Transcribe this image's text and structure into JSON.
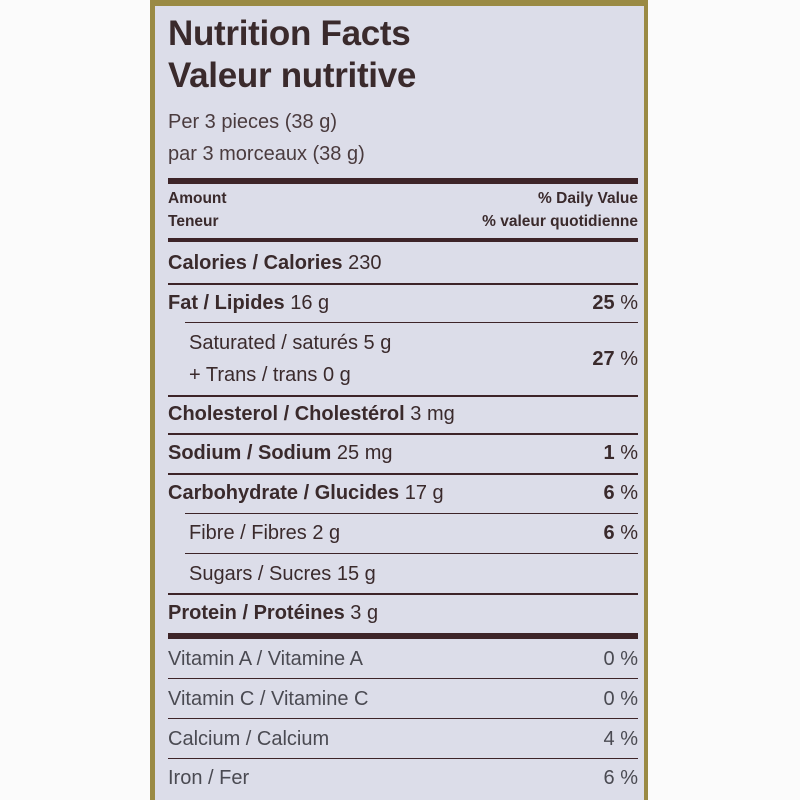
{
  "title_en": "Nutrition Facts",
  "title_fr": "Valeur nutritive",
  "serving_en": "Per 3 pieces (38 g)",
  "serving_fr": "par 3 morceaux (38 g)",
  "header": {
    "amount_en": "Amount",
    "amount_fr": "Teneur",
    "dv_en": "% Daily Value",
    "dv_fr": "% valeur quotidienne"
  },
  "nutrients": {
    "calories": {
      "label": "Calories / Calories",
      "amount": "230"
    },
    "fat": {
      "label": "Fat / Lipides",
      "amount": "16 g",
      "dv": "25",
      "pct": "%"
    },
    "saturated": {
      "label": "Saturated / saturés",
      "amount": "5 g",
      "trans_label": "+ Trans / trans",
      "trans_amount": "0 g",
      "dv": "27",
      "pct": "%"
    },
    "cholesterol": {
      "label": "Cholesterol / Cholestérol",
      "amount": "3 mg"
    },
    "sodium": {
      "label": "Sodium / Sodium",
      "amount": "25 mg",
      "dv": "1",
      "pct": "%"
    },
    "carbohydrate": {
      "label": "Carbohydrate / Glucides",
      "amount": "17 g",
      "dv": "6",
      "pct": "%"
    },
    "fibre": {
      "label": "Fibre / Fibres",
      "amount": "2 g",
      "dv": "6",
      "pct": "%"
    },
    "sugars": {
      "label": "Sugars / Sucres",
      "amount": "15 g"
    },
    "protein": {
      "label": "Protein / Protéines",
      "amount": "3 g"
    }
  },
  "vitamins": [
    {
      "label": "Vitamin A / Vitamine A",
      "dv": "0 %"
    },
    {
      "label": "Vitamin C / Vitamine C",
      "dv": "0 %"
    },
    {
      "label": "Calcium / Calcium",
      "dv": "4 %"
    },
    {
      "label": "Iron / Fer",
      "dv": "6 %"
    }
  ]
}
